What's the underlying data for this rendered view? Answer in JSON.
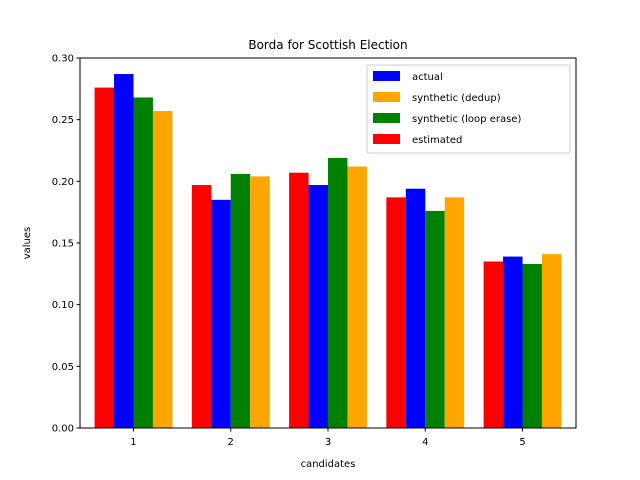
{
  "chart_data": {
    "type": "bar",
    "title": "Borda for Scottish Election",
    "xlabel": "candidates",
    "ylabel": "values",
    "categories": [
      "1",
      "2",
      "3",
      "4",
      "5"
    ],
    "ylim": [
      0,
      0.3
    ],
    "yticks": [
      "0.00",
      "0.05",
      "0.10",
      "0.15",
      "0.20",
      "0.25",
      "0.30"
    ],
    "legend_position": "top-right",
    "grid": false,
    "series": [
      {
        "name": "estimated",
        "color": "#ff0000",
        "values": [
          0.276,
          0.197,
          0.207,
          0.187,
          0.135
        ]
      },
      {
        "name": "actual",
        "color": "#0000ff",
        "values": [
          0.287,
          0.185,
          0.197,
          0.194,
          0.139
        ]
      },
      {
        "name": "synthetic (loop erase)",
        "color": "#008000",
        "values": [
          0.268,
          0.206,
          0.219,
          0.176,
          0.133
        ]
      },
      {
        "name": "synthetic (dedup)",
        "color": "#ffa500",
        "values": [
          0.257,
          0.204,
          0.212,
          0.187,
          0.141
        ]
      }
    ],
    "legend_order": [
      "actual",
      "synthetic (dedup)",
      "synthetic (loop erase)",
      "estimated"
    ]
  }
}
